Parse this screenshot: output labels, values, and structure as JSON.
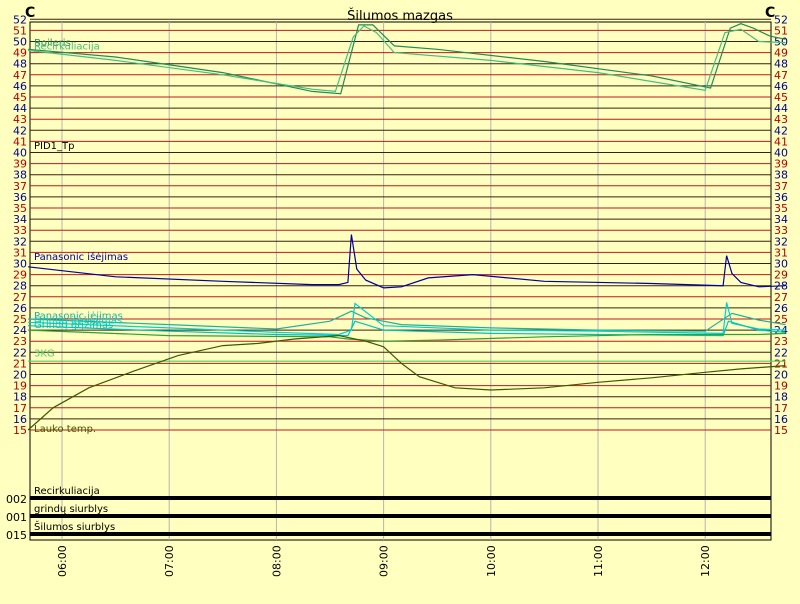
{
  "chart_data": {
    "type": "line",
    "title": "Šilumos mazgas",
    "y_unit_left": "C",
    "y_unit_right": "C",
    "ylim": [
      15,
      52
    ],
    "y_ticks": [
      15,
      16,
      17,
      18,
      19,
      20,
      21,
      22,
      23,
      24,
      25,
      26,
      27,
      28,
      29,
      30,
      31,
      32,
      33,
      34,
      35,
      36,
      37,
      38,
      39,
      40,
      41,
      42,
      43,
      44,
      45,
      46,
      47,
      48,
      49,
      50,
      51,
      52
    ],
    "x_ticks": [
      "06:00",
      "07:00",
      "08:00",
      "09:00",
      "10:00",
      "11:00",
      "12:00"
    ],
    "red_gridlines": [
      15,
      17,
      19,
      21,
      23,
      25,
      27,
      29,
      31,
      33,
      35,
      37,
      39,
      41,
      43,
      45,
      47,
      49,
      51
    ],
    "dark_gridlines": [
      16,
      18,
      20,
      22,
      24,
      26,
      28,
      30,
      32,
      34,
      36,
      38,
      40,
      42,
      44,
      46,
      48,
      50,
      52
    ],
    "series": [
      {
        "name": "Boileris",
        "color": "#228b55",
        "x": [
          "05:41",
          "06:30",
          "07:30",
          "08:20",
          "08:36",
          "08:46",
          "08:54",
          "09:06",
          "09:30",
          "10:30",
          "11:30",
          "12:03",
          "12:14",
          "12:20",
          "12:27",
          "12:36",
          "12:45"
        ],
        "values": [
          49.3,
          48.6,
          47.2,
          45.5,
          45.3,
          51.5,
          51.5,
          49.6,
          49.3,
          48.2,
          46.9,
          45.8,
          51.2,
          51.6,
          51.2,
          50.5,
          50.2
        ]
      },
      {
        "name": "Recirkuliacija",
        "color": "#40c080",
        "x": [
          "05:41",
          "06:30",
          "07:30",
          "08:20",
          "08:33",
          "08:43",
          "08:49",
          "08:56",
          "09:06",
          "10:00",
          "11:00",
          "12:00",
          "12:11",
          "12:20",
          "12:30",
          "12:45"
        ],
        "values": [
          49.2,
          48.3,
          47.0,
          45.7,
          45.5,
          50.4,
          51.4,
          50.8,
          49.0,
          48.3,
          47.2,
          45.6,
          50.8,
          51.1,
          50.0,
          49.9
        ]
      },
      {
        "name": "Panasonic išėjimas",
        "color": "#0000a0",
        "x": [
          "05:41",
          "06:30",
          "07:30",
          "08:20",
          "08:35",
          "08:40",
          "08:42",
          "08:45",
          "08:50",
          "09:00",
          "09:10",
          "09:25",
          "09:50",
          "10:30",
          "11:30",
          "12:10",
          "12:12",
          "12:15",
          "12:20",
          "12:30",
          "12:45"
        ],
        "values": [
          29.7,
          28.8,
          28.4,
          28.1,
          28.1,
          28.3,
          32.6,
          29.5,
          28.5,
          27.8,
          27.9,
          28.7,
          29.0,
          28.4,
          28.2,
          28.0,
          30.7,
          29.1,
          28.3,
          27.9,
          28.0
        ]
      },
      {
        "name": "Panasonic įėjimas",
        "color": "#20b0a0",
        "x": [
          "05:41",
          "07:00",
          "08:00",
          "08:30",
          "08:42",
          "08:50",
          "09:10",
          "10:00",
          "11:00",
          "12:00",
          "12:15",
          "12:30",
          "12:45"
        ],
        "values": [
          25.0,
          24.5,
          24.1,
          24.8,
          25.7,
          25.1,
          24.5,
          24.2,
          24.0,
          23.9,
          25.5,
          24.9,
          24.5
        ]
      },
      {
        "name": "Grindų įtekėjimas",
        "color": "#00d0d0",
        "x": [
          "05:41",
          "07:00",
          "08:00",
          "08:35",
          "08:42",
          "08:44",
          "09:00",
          "10:00",
          "11:00",
          "12:10",
          "12:12",
          "12:15",
          "12:30",
          "12:45"
        ],
        "values": [
          24.7,
          24.2,
          23.8,
          23.6,
          24.0,
          26.4,
          24.4,
          24.0,
          23.9,
          23.7,
          26.5,
          24.6,
          24.1,
          24.0
        ]
      },
      {
        "name": "Grindų grįžimas",
        "color": "#00c0c0",
        "x": [
          "05:41",
          "07:00",
          "08:00",
          "08:40",
          "08:44",
          "09:00",
          "10:00",
          "11:00",
          "12:10",
          "12:13",
          "12:30",
          "12:45"
        ],
        "values": [
          24.4,
          23.9,
          23.6,
          23.5,
          24.8,
          24.0,
          23.7,
          23.6,
          23.5,
          24.8,
          24.0,
          23.8
        ]
      },
      {
        "name": "Patalpa",
        "color": "#30a030",
        "x": [
          "05:41",
          "07:00",
          "08:30",
          "08:40",
          "09:00",
          "09:30",
          "10:30",
          "11:30",
          "12:30",
          "12:45"
        ],
        "values": [
          24.0,
          23.5,
          23.4,
          23.2,
          23.0,
          23.1,
          23.4,
          23.6,
          23.6,
          23.7
        ]
      },
      {
        "name": "3KG",
        "color": "#50d060",
        "x": [
          "05:41",
          "07:00",
          "08:00",
          "09:00",
          "10:00",
          "11:00",
          "12:00",
          "12:45"
        ],
        "values": [
          21.2,
          21.2,
          21.2,
          21.2,
          21.2,
          21.2,
          21.2,
          21.2
        ]
      },
      {
        "name": "Lauko temp.",
        "color": "#3c5a00",
        "x": [
          "05:41",
          "05:55",
          "06:15",
          "06:40",
          "07:05",
          "07:30",
          "07:50",
          "08:10",
          "08:35",
          "08:50",
          "09:00",
          "09:10",
          "09:20",
          "09:40",
          "10:00",
          "10:30",
          "11:00",
          "11:30",
          "12:00",
          "12:20",
          "12:45"
        ],
        "values": [
          15.0,
          17.0,
          18.8,
          20.3,
          21.7,
          22.6,
          22.8,
          23.2,
          23.5,
          23.0,
          22.5,
          21.0,
          19.8,
          18.8,
          18.6,
          18.8,
          19.3,
          19.7,
          20.2,
          20.5,
          20.8
        ]
      }
    ],
    "extra_labels": [
      "PID1_Tp"
    ],
    "digital_channels": [
      {
        "code": "002",
        "label": "Recirkuliacija"
      },
      {
        "code": "001",
        "label": "grindų siurblys"
      },
      {
        "code": "015",
        "label": "Šilumos siurblys"
      }
    ]
  }
}
